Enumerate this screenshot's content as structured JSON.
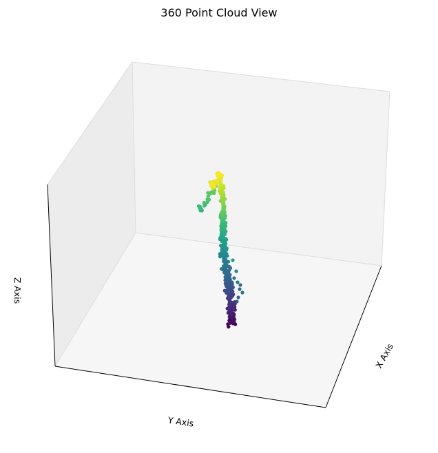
{
  "chart_data": {
    "type": "scatter",
    "projection": "3d",
    "title": "360 Point Cloud View",
    "xlabel": "X Axis",
    "ylabel": "Y Axis",
    "zlabel": "Z Axis",
    "tick_labels": "hidden",
    "grid": true,
    "colormap": "viridis",
    "color_by": "z",
    "point_count": 420,
    "points_description": "a narrow, nearly vertical column of points; colour runs from dark purple at the bottom to yellow at the top, with a small cluster branching off near the top-left and a few scattered points near the lower-right"
  },
  "colors": {
    "pane_left": "#ececec",
    "pane_back": "#f3f3f3",
    "pane_floor": "#f6f6f6",
    "grid": "#dcdcdc",
    "axis_line": "#000000"
  }
}
